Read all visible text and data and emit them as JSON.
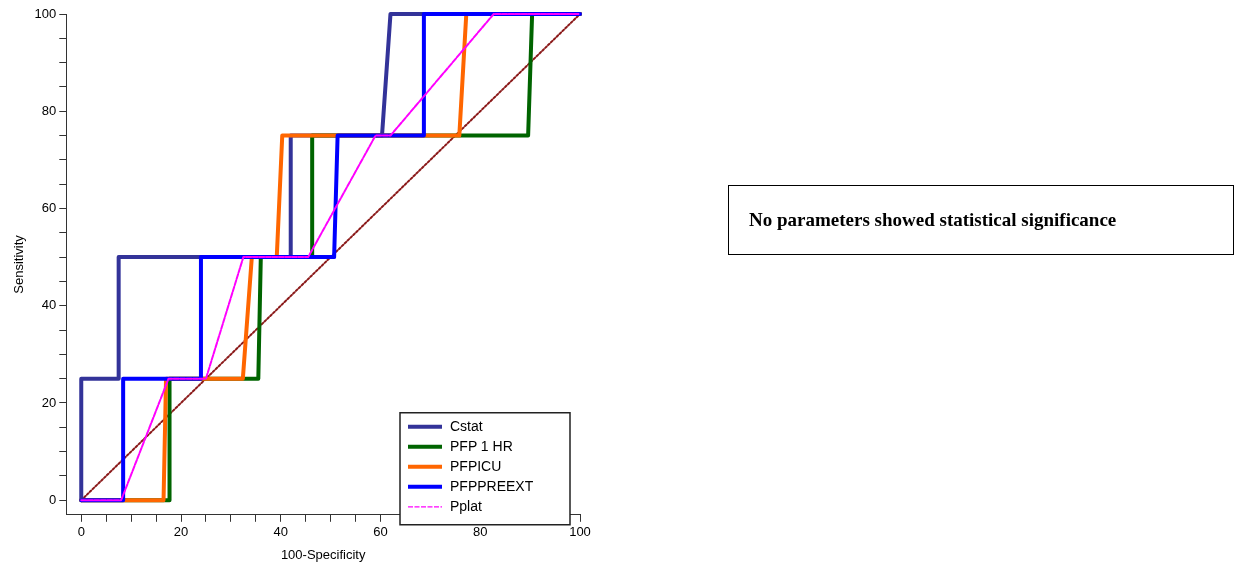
{
  "chart_data": {
    "type": "line",
    "xlabel": "100-Specificity",
    "ylabel": "Sensitivity",
    "xlim": [
      -3,
      100
    ],
    "ylim": [
      -3,
      100
    ],
    "xticks": [
      0,
      {
        "value": 5,
        "label": null
      },
      {
        "value": 10,
        "label": null
      },
      {
        "value": 15,
        "label": null
      },
      20,
      {
        "value": 25,
        "label": null
      },
      {
        "value": 30,
        "label": null
      },
      {
        "value": 35,
        "label": null
      },
      40,
      {
        "value": 45,
        "label": null
      },
      {
        "value": 50,
        "label": null
      },
      {
        "value": 55,
        "label": null
      },
      60,
      {
        "value": 65,
        "label": null
      },
      {
        "value": 70,
        "label": null
      },
      {
        "value": 75,
        "label": null
      },
      80,
      {
        "value": 85,
        "label": null
      },
      {
        "value": 90,
        "label": null
      },
      {
        "value": 95,
        "label": null
      },
      100
    ],
    "yticks": [
      0,
      {
        "value": 5,
        "label": null
      },
      {
        "value": 10,
        "label": null
      },
      {
        "value": 15,
        "label": null
      },
      20,
      {
        "value": 25,
        "label": null
      },
      {
        "value": 30,
        "label": null
      },
      {
        "value": 35,
        "label": null
      },
      40,
      {
        "value": 45,
        "label": null
      },
      {
        "value": 50,
        "label": null
      },
      {
        "value": 55,
        "label": null
      },
      60,
      {
        "value": 65,
        "label": null
      },
      {
        "value": 70,
        "label": null
      },
      {
        "value": 75,
        "label": null
      },
      80,
      {
        "value": 85,
        "label": null
      },
      {
        "value": 90,
        "label": null
      },
      {
        "value": 95,
        "label": null
      },
      100
    ],
    "grid": false,
    "legend": "bottom right",
    "marker": "none",
    "annotations": [
      "No parameters showed statistical significance"
    ],
    "series": [
      {
        "color": "#8b1a1a",
        "line_style": "dotted",
        "x": [
          0,
          100
        ],
        "values": [
          0,
          100
        ]
      },
      {
        "name": "Cstat",
        "color": "#333399",
        "line_style": "solid",
        "x": [
          0,
          0,
          7.5,
          7.5,
          42,
          42,
          60.3,
          62,
          100
        ],
        "values": [
          0,
          25,
          25,
          50,
          50,
          75,
          75,
          100,
          100
        ]
      },
      {
        "name": "PFP 1 HR",
        "color": "#006400",
        "line_style": "solid",
        "x": [
          0,
          17.7,
          17.7,
          35.5,
          36,
          46.3,
          46.3,
          89.6,
          90.4,
          100
        ],
        "values": [
          0,
          0,
          25,
          25,
          50,
          50,
          75,
          75,
          100,
          100
        ]
      },
      {
        "name": "PFPICU",
        "color": "#ff6600",
        "line_style": "solid",
        "x": [
          0,
          16.5,
          17,
          32.4,
          34.2,
          39.2,
          40.3,
          75.8,
          77.2,
          100
        ],
        "values": [
          0,
          0,
          25,
          25,
          50,
          50,
          75,
          75,
          100,
          100
        ]
      },
      {
        "name": "PFPPREEXT",
        "color": "#0000ff",
        "line_style": "solid",
        "x": [
          0,
          8.4,
          8.4,
          24,
          24,
          50.7,
          51.4,
          68.7,
          68.7,
          100
        ],
        "values": [
          0,
          0,
          25,
          25,
          50,
          50,
          75,
          75,
          100,
          100
        ]
      },
      {
        "name": "Pplat",
        "color": "#ff00ff",
        "line_style": "dashed",
        "x": [
          0,
          8,
          17.5,
          25,
          32.5,
          45.5,
          59,
          62,
          82.7,
          100
        ],
        "values": [
          0,
          0,
          25,
          25,
          50,
          50,
          75,
          75,
          100,
          100
        ]
      }
    ]
  }
}
